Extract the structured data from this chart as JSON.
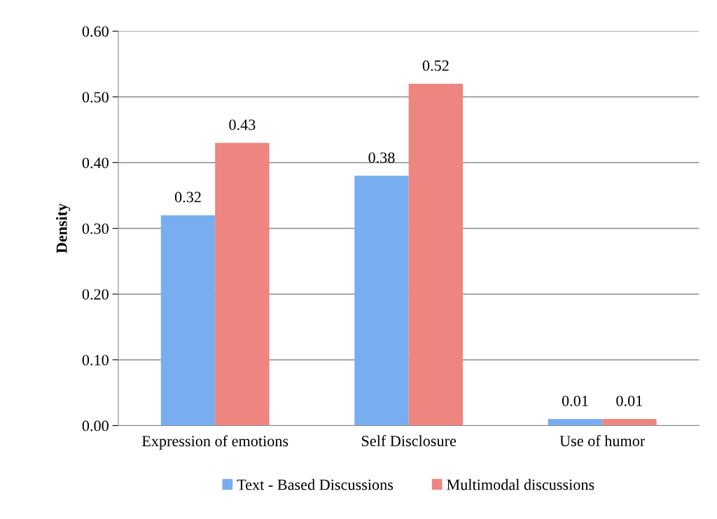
{
  "chart_data": {
    "type": "bar",
    "ylabel": "Density",
    "categories": [
      "Expression of emotions",
      "Self Disclosure",
      "Use of humor"
    ],
    "series": [
      {
        "name": "Text - Based Discussions",
        "color": "#78aef0",
        "values": [
          0.32,
          0.38,
          0.01
        ]
      },
      {
        "name": "Multimodal discussions",
        "color": "#ee8580",
        "values": [
          0.43,
          0.52,
          0.01
        ]
      }
    ],
    "ylim": [
      0,
      0.6
    ],
    "yticks": [
      {
        "value": 0,
        "label": "0.00"
      },
      {
        "value": 0.1,
        "label": "0.10"
      },
      {
        "value": 0.2,
        "label": "0.20"
      },
      {
        "value": 0.3,
        "label": "0.30"
      },
      {
        "value": 0.4,
        "label": "0.40"
      },
      {
        "value": 0.5,
        "label": "0.50"
      },
      {
        "value": 0.6,
        "label": "0.60"
      }
    ],
    "grid": "y",
    "legend": "bottom",
    "data_labels": true
  }
}
